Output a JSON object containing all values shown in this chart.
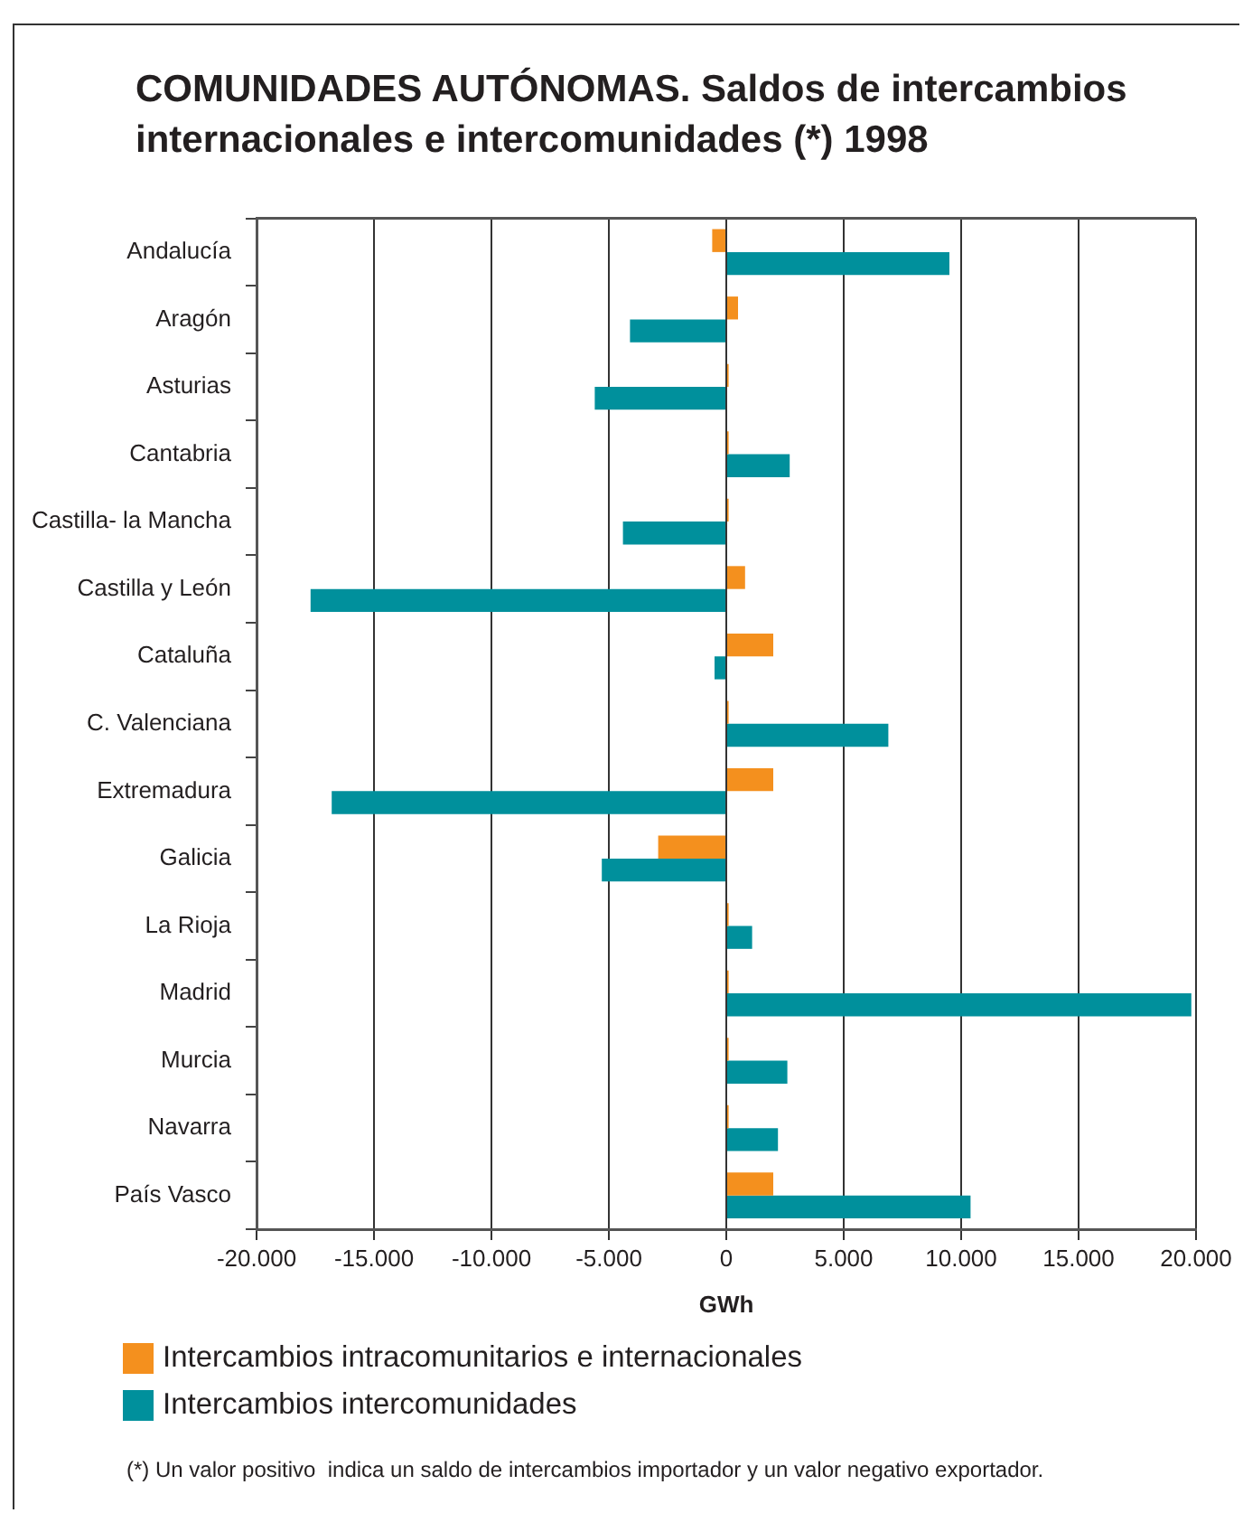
{
  "chart_data": {
    "type": "bar",
    "orientation": "horizontal",
    "title": "COMUNIDADES AUTÓNOMAS. Saldos de intercambios internacionales e intercomunidades (*) 1998",
    "xlabel": "GWh",
    "categories": [
      "Andalucía",
      "Aragón",
      "Asturias",
      "Cantabria",
      "Castilla- la Mancha",
      "Castilla y León",
      "Cataluña",
      "C. Valenciana",
      "Extremadura",
      "Galicia",
      "La Rioja",
      "Madrid",
      "Murcia",
      "Navarra",
      "País Vasco"
    ],
    "series": [
      {
        "name": "Intercambios intracomunitarios e internacionales",
        "color": "#f4901e",
        "values": [
          -600,
          500,
          100,
          100,
          100,
          800,
          2000,
          100,
          2000,
          -2900,
          100,
          100,
          100,
          100,
          2000
        ]
      },
      {
        "name": "Intercambios intercomunidades",
        "color": "#00909c",
        "values": [
          9500,
          -4100,
          -5600,
          2700,
          -4400,
          -17700,
          -500,
          6900,
          -16800,
          -5300,
          1100,
          19800,
          2600,
          2200,
          10400
        ]
      }
    ],
    "xlim": [
      -20000,
      20000
    ],
    "xticks": [
      {
        "value": -20000,
        "label": "-20.000"
      },
      {
        "value": -15000,
        "label": "-15.000"
      },
      {
        "value": -10000,
        "label": "-10.000"
      },
      {
        "value": -5000,
        "label": "-5.000"
      },
      0,
      {
        "value": 5000,
        "label": "5.000"
      },
      {
        "value": 10000,
        "label": "10.000"
      },
      {
        "value": 15000,
        "label": "15.000"
      },
      {
        "value": 20000,
        "label": "20.000"
      }
    ],
    "grid": "x",
    "legend": "bottom",
    "annotations": [
      "(*) Un valor positivo  indica un saldo de intercambios importador y un valor negativo exportador."
    ]
  }
}
